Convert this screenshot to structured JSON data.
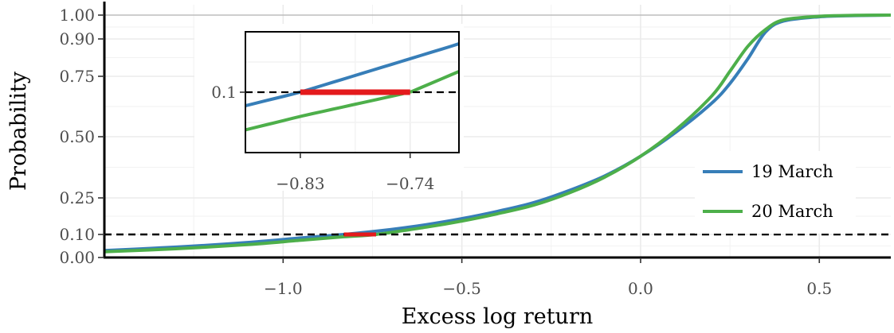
{
  "chart_data": {
    "type": "line",
    "title": "",
    "xlabel": "Excess log return",
    "ylabel": "Probability",
    "xlim": [
      -1.5,
      0.7
    ],
    "ylim": [
      0.0,
      1.0
    ],
    "y_scale": "custom non-linear (ticks 0.00, 0.10, 0.25, 0.50, 0.75, 0.90, 1.00)",
    "x_ticks": [
      -1.0,
      -0.5,
      0.0,
      0.5
    ],
    "x_tick_labels": [
      "−1.0",
      "−0.5",
      "0.0",
      "0.5"
    ],
    "y_ticks": [
      0.0,
      0.1,
      0.25,
      0.5,
      0.75,
      0.9,
      1.0
    ],
    "y_tick_labels": [
      "0.00",
      "0.10",
      "0.25",
      "0.50",
      "0.75",
      "0.90",
      "1.00"
    ],
    "grid": true,
    "legend_position": "right",
    "reference_line": {
      "y": 0.1,
      "style": "dashed",
      "color": "#000000"
    },
    "highlight_segment": {
      "y": 0.1,
      "x_from": -0.83,
      "x_to": -0.74,
      "color": "#e41a1c"
    },
    "series": [
      {
        "name": "19 March",
        "color": "#377eb8",
        "x": [
          -1.5,
          -1.3,
          -1.1,
          -0.95,
          -0.83,
          -0.7,
          -0.6,
          -0.5,
          -0.4,
          -0.3,
          -0.2,
          -0.1,
          0.0,
          0.1,
          0.2,
          0.25,
          0.3,
          0.35,
          0.4,
          0.5,
          0.6,
          0.7
        ],
        "y": [
          0.03,
          0.045,
          0.065,
          0.085,
          0.1,
          0.12,
          0.14,
          0.165,
          0.195,
          0.23,
          0.28,
          0.34,
          0.42,
          0.52,
          0.64,
          0.72,
          0.82,
          0.93,
          0.975,
          0.993,
          0.998,
          1.0
        ]
      },
      {
        "name": "20 March",
        "color": "#4daf4a",
        "x": [
          -1.5,
          -1.3,
          -1.1,
          -0.95,
          -0.83,
          -0.74,
          -0.6,
          -0.5,
          -0.4,
          -0.3,
          -0.2,
          -0.1,
          0.0,
          0.1,
          0.2,
          0.25,
          0.3,
          0.35,
          0.4,
          0.5,
          0.6,
          0.7
        ],
        "y": [
          0.025,
          0.038,
          0.056,
          0.075,
          0.09,
          0.1,
          0.13,
          0.155,
          0.185,
          0.22,
          0.27,
          0.335,
          0.42,
          0.53,
          0.67,
          0.77,
          0.87,
          0.94,
          0.98,
          0.995,
          0.999,
          1.0
        ]
      }
    ],
    "inset": {
      "xlim": [
        -0.875,
        -0.7
      ],
      "ylim": [
        0.075,
        0.125
      ],
      "x_ticks": [
        -0.83,
        -0.74
      ],
      "x_tick_labels": [
        "−0.83",
        "−0.74"
      ],
      "y_ticks": [
        0.1
      ],
      "y_tick_labels": [
        "0.1"
      ],
      "grid": true
    }
  }
}
